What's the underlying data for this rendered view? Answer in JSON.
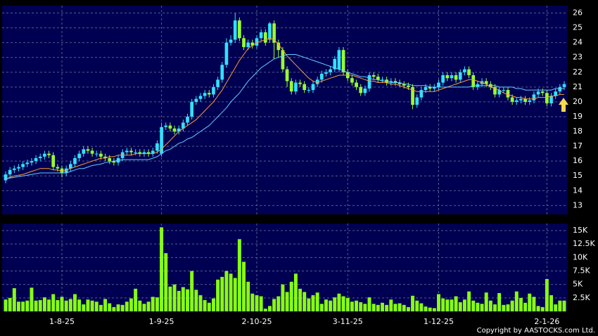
{
  "chart_data": {
    "type": "candlestick",
    "categories": [
      null,
      null,
      null,
      null,
      null,
      null,
      null,
      null,
      null,
      null,
      null,
      null,
      null,
      "1-8-25",
      null,
      null,
      null,
      null,
      null,
      null,
      null,
      null,
      null,
      null,
      null,
      null,
      null,
      null,
      null,
      null,
      null,
      null,
      null,
      null,
      null,
      null,
      "1-9-25",
      null,
      null,
      null,
      null,
      null,
      null,
      null,
      null,
      null,
      null,
      null,
      null,
      null,
      null,
      null,
      null,
      null,
      null,
      null,
      null,
      null,
      "2-10-25",
      null,
      null,
      null,
      null,
      null,
      null,
      null,
      null,
      null,
      null,
      null,
      null,
      null,
      null,
      null,
      null,
      null,
      null,
      null,
      null,
      "3-11-25",
      null,
      null,
      null,
      null,
      null,
      null,
      null,
      null,
      null,
      null,
      null,
      null,
      null,
      null,
      null,
      null,
      null,
      null,
      null,
      null,
      "1-12-25",
      null,
      null,
      null,
      null,
      null,
      null,
      null,
      null,
      null,
      null,
      null,
      null,
      null,
      null,
      null,
      null,
      null,
      null,
      null,
      null,
      null,
      null,
      null,
      null,
      "2-1-26",
      null,
      null,
      null,
      null
    ],
    "open": [
      14.7,
      15.1,
      15.4,
      15.5,
      15.6,
      15.8,
      15.9,
      16.0,
      16.2,
      16.3,
      16.5,
      16.4,
      15.6,
      15.5,
      15.2,
      15.5,
      15.8,
      16.2,
      16.5,
      16.8,
      16.7,
      16.5,
      16.5,
      16.3,
      16.2,
      16.0,
      15.9,
      16.2,
      16.6,
      16.7,
      16.6,
      16.6,
      16.5,
      16.6,
      16.5,
      16.7,
      16.5,
      18.3,
      18.4,
      18.2,
      18.0,
      18.2,
      18.6,
      19.0,
      20.0,
      20.2,
      20.4,
      20.6,
      20.5,
      21.0,
      21.5,
      22.5,
      24.0,
      24.2,
      25.5,
      24.3,
      23.7,
      24.0,
      23.8,
      24.3,
      24.7,
      24.2,
      25.3,
      24.0,
      23.5,
      22.2,
      21.4,
      20.7,
      21.3,
      21.2,
      20.8,
      20.8,
      21.2,
      21.5,
      21.9,
      22.0,
      22.2,
      22.2,
      23.5,
      22.0,
      21.6,
      21.3,
      21.0,
      20.6,
      20.9,
      21.8,
      21.7,
      21.5,
      21.5,
      21.3,
      21.4,
      21.3,
      21.2,
      21.1,
      21.0,
      19.8,
      20.3,
      20.8,
      21.0,
      20.9,
      21.0,
      21.3,
      21.8,
      21.6,
      21.8,
      21.5,
      22.0,
      22.2,
      21.8,
      21.0,
      21.2,
      21.4,
      21.2,
      21.0,
      20.5,
      20.8,
      20.8,
      20.3,
      20.0,
      20.1,
      20.2,
      20.0,
      20.1,
      20.5,
      20.7,
      20.6,
      19.9,
      20.4,
      20.7,
      21.0
    ],
    "high": [
      15.3,
      15.6,
      15.7,
      15.8,
      16.0,
      16.1,
      16.2,
      16.4,
      16.5,
      16.7,
      16.7,
      16.6,
      15.8,
      15.7,
      15.7,
      16.0,
      16.4,
      16.7,
      17.0,
      17.0,
      16.9,
      16.7,
      16.7,
      16.5,
      16.4,
      16.2,
      16.4,
      16.8,
      16.9,
      16.9,
      16.8,
      16.8,
      16.8,
      16.8,
      16.9,
      17.4,
      18.6,
      18.6,
      18.6,
      18.4,
      18.4,
      18.8,
      19.2,
      20.2,
      20.4,
      20.6,
      20.8,
      20.8,
      21.2,
      21.7,
      22.7,
      24.3,
      24.5,
      26.0,
      25.7,
      24.5,
      24.2,
      24.2,
      24.5,
      24.9,
      24.9,
      25.4,
      25.5,
      24.2,
      23.7,
      22.4,
      21.6,
      21.5,
      21.5,
      21.4,
      21.0,
      21.4,
      21.7,
      22.1,
      22.2,
      22.4,
      23.1,
      23.7,
      23.7,
      22.2,
      21.8,
      21.5,
      21.2,
      21.1,
      22.0,
      22.0,
      21.9,
      21.7,
      21.7,
      21.6,
      21.6,
      21.5,
      21.4,
      21.3,
      21.2,
      20.5,
      21.0,
      21.2,
      21.2,
      21.2,
      21.5,
      22.0,
      22.0,
      22.0,
      22.0,
      22.2,
      22.4,
      22.4,
      22.0,
      21.4,
      21.6,
      21.6,
      21.4,
      21.2,
      21.0,
      21.0,
      21.0,
      20.5,
      20.3,
      20.4,
      20.4,
      20.3,
      20.7,
      20.9,
      20.9,
      20.8,
      20.6,
      20.9,
      21.2,
      21.4
    ],
    "low": [
      14.5,
      14.9,
      15.2,
      15.3,
      15.4,
      15.6,
      15.7,
      15.8,
      16.0,
      16.1,
      16.2,
      15.4,
      15.3,
      14.9,
      15.0,
      15.3,
      15.6,
      16.0,
      16.3,
      16.5,
      16.3,
      16.3,
      16.1,
      16.0,
      15.8,
      15.7,
      15.7,
      16.0,
      16.4,
      16.4,
      16.4,
      16.3,
      16.3,
      16.3,
      16.3,
      16.5,
      16.3,
      18.1,
      18.0,
      17.8,
      17.8,
      18.0,
      18.4,
      18.8,
      19.8,
      20.0,
      20.2,
      20.3,
      20.3,
      20.8,
      21.3,
      22.3,
      23.8,
      24.0,
      24.1,
      23.5,
      23.5,
      23.6,
      23.6,
      24.1,
      23.8,
      24.0,
      22.9,
      23.0,
      22.0,
      21.0,
      20.5,
      20.5,
      21.0,
      20.6,
      20.6,
      20.6,
      21.0,
      21.3,
      21.7,
      21.8,
      22.0,
      22.0,
      21.8,
      21.4,
      21.1,
      20.8,
      20.4,
      20.4,
      20.7,
      21.5,
      21.3,
      21.3,
      21.1,
      21.1,
      21.1,
      21.0,
      20.9,
      20.8,
      19.5,
      19.6,
      20.1,
      20.6,
      20.7,
      20.7,
      20.8,
      21.1,
      21.4,
      21.4,
      21.3,
      21.3,
      21.8,
      21.6,
      20.8,
      20.8,
      21.0,
      21.0,
      20.8,
      20.3,
      20.3,
      20.6,
      20.1,
      19.8,
      19.8,
      19.9,
      19.8,
      19.8,
      19.9,
      20.3,
      20.4,
      19.7,
      19.7,
      20.2,
      20.5,
      20.8
    ],
    "close": [
      15.1,
      15.4,
      15.5,
      15.6,
      15.8,
      15.9,
      16.0,
      16.2,
      16.3,
      16.5,
      16.4,
      15.6,
      15.5,
      15.2,
      15.5,
      15.8,
      16.2,
      16.5,
      16.8,
      16.7,
      16.5,
      16.5,
      16.3,
      16.2,
      16.0,
      15.9,
      16.2,
      16.6,
      16.7,
      16.6,
      16.6,
      16.5,
      16.6,
      16.5,
      16.7,
      17.2,
      18.3,
      18.4,
      18.2,
      18.0,
      18.2,
      18.6,
      19.0,
      20.0,
      20.2,
      20.4,
      20.6,
      20.5,
      21.0,
      21.5,
      22.5,
      24.0,
      24.2,
      25.5,
      24.3,
      23.7,
      24.0,
      23.8,
      24.3,
      24.7,
      24.0,
      25.3,
      24.0,
      23.5,
      22.2,
      21.4,
      20.7,
      21.3,
      21.2,
      20.8,
      20.8,
      21.2,
      21.5,
      21.9,
      22.0,
      22.2,
      22.9,
      23.5,
      22.0,
      21.6,
      21.3,
      21.0,
      20.6,
      20.9,
      21.8,
      21.7,
      21.5,
      21.5,
      21.3,
      21.4,
      21.3,
      21.2,
      21.1,
      21.0,
      19.8,
      20.3,
      20.8,
      21.0,
      20.9,
      21.0,
      21.3,
      21.8,
      21.6,
      21.8,
      21.5,
      22.0,
      22.2,
      21.8,
      21.0,
      21.2,
      21.4,
      21.2,
      21.0,
      20.5,
      20.8,
      20.8,
      20.3,
      20.0,
      20.1,
      20.2,
      20.0,
      20.1,
      20.5,
      20.7,
      20.6,
      19.9,
      20.4,
      20.7,
      21.0,
      21.2
    ],
    "up_color": "#33e0ff",
    "down_color": "#99ff33",
    "lines": [
      {
        "color": "#ff9933",
        "values": [
          14.8,
          14.9,
          15.0,
          15.05,
          15.1,
          15.2,
          15.3,
          15.4,
          15.5,
          15.5,
          15.5,
          15.4,
          15.4,
          15.3,
          15.4,
          15.5,
          15.6,
          15.7,
          15.8,
          15.9,
          16.0,
          16.1,
          16.2,
          16.2,
          16.3,
          16.3,
          16.4,
          16.4,
          16.4,
          16.4,
          16.5,
          16.5,
          16.5,
          16.5,
          16.5,
          16.6,
          16.8,
          17.1,
          17.4,
          17.7,
          18.0,
          18.2,
          18.4,
          18.6,
          18.8,
          19.1,
          19.4,
          19.7,
          20.0,
          20.4,
          20.8,
          21.3,
          21.8,
          22.3,
          22.8,
          23.2,
          23.6,
          23.8,
          24.0,
          24.1,
          24.2,
          24.3,
          24.2,
          23.9,
          23.5,
          23.1,
          22.8,
          22.5,
          22.2,
          21.9,
          21.6,
          21.4,
          21.3,
          21.4,
          21.5,
          21.6,
          21.7,
          21.8,
          21.8,
          21.8,
          21.8,
          21.7,
          21.6,
          21.5,
          21.4,
          21.4,
          21.3,
          21.3,
          21.3,
          21.2,
          21.2,
          21.1,
          21.0,
          20.9,
          20.8,
          20.7,
          20.7,
          20.7,
          20.7,
          20.7,
          20.8,
          20.9,
          21.0,
          21.1,
          21.2,
          21.3,
          21.4,
          21.5,
          21.5,
          21.4,
          21.3,
          21.2,
          21.0,
          20.9,
          20.8,
          20.6,
          20.5,
          20.4,
          20.3,
          20.3,
          20.2,
          20.2,
          20.2,
          20.3,
          20.3,
          20.3,
          20.4,
          20.4,
          20.5,
          20.5
        ]
      },
      {
        "color": "#66ccff",
        "values": [
          14.8,
          14.85,
          14.9,
          14.95,
          15.0,
          15.05,
          15.1,
          15.15,
          15.2,
          15.2,
          15.2,
          15.2,
          15.2,
          15.2,
          15.2,
          15.3,
          15.4,
          15.5,
          15.5,
          15.6,
          15.7,
          15.75,
          15.8,
          15.9,
          15.95,
          16.0,
          16.05,
          16.1,
          16.1,
          16.1,
          16.1,
          16.1,
          16.1,
          16.1,
          16.2,
          16.3,
          16.5,
          16.7,
          16.8,
          17.0,
          17.2,
          17.3,
          17.5,
          17.6,
          17.8,
          18.0,
          18.2,
          18.4,
          18.7,
          19.0,
          19.3,
          19.6,
          20.0,
          20.3,
          20.6,
          21.0,
          21.4,
          21.7,
          22.0,
          22.3,
          22.5,
          22.7,
          22.9,
          23.0,
          23.1,
          23.2,
          23.2,
          23.2,
          23.1,
          23.0,
          22.9,
          22.8,
          22.7,
          22.6,
          22.5,
          22.4,
          22.3,
          22.2,
          22.1,
          22.0,
          21.9,
          21.8,
          21.7,
          21.7,
          21.6,
          21.5,
          21.5,
          21.4,
          21.4,
          21.3,
          21.3,
          21.3,
          21.2,
          21.2,
          21.1,
          21.1,
          21.1,
          21.1,
          21.0,
          21.0,
          21.0,
          21.0,
          21.0,
          21.0,
          21.0,
          21.0,
          21.0,
          21.0,
          21.1,
          21.1,
          21.1,
          21.1,
          21.1,
          21.1,
          21.0,
          21.0,
          21.0,
          21.0,
          20.9,
          20.9,
          20.8,
          20.8,
          20.8,
          20.8,
          20.8,
          20.8,
          20.8,
          20.9,
          20.9,
          20.9
        ]
      }
    ],
    "ylim": [
      12.4,
      26.5
    ],
    "yticks": [
      13,
      14,
      15,
      16,
      17,
      18,
      19,
      20,
      21,
      22,
      23,
      24,
      25,
      26
    ],
    "grid": true,
    "volume": {
      "color": "#88ff11",
      "values": [
        2200,
        2500,
        4300,
        1800,
        1800,
        2000,
        4400,
        2000,
        2100,
        2600,
        2200,
        3200,
        2100,
        2700,
        2000,
        2300,
        3200,
        2200,
        1300,
        2200,
        2000,
        1800,
        1200,
        2300,
        1500,
        800,
        1300,
        1200,
        1800,
        2400,
        4200,
        2000,
        1400,
        1800,
        2700,
        2600,
        15600,
        10800,
        4600,
        5000,
        3800,
        4500,
        4100,
        7500,
        4000,
        3000,
        2100,
        1600,
        2400,
        5900,
        6400,
        7500,
        7000,
        6200,
        13400,
        9200,
        5500,
        3300,
        3000,
        2800,
        500,
        1000,
        2300,
        2800,
        5000,
        3600,
        5500,
        7000,
        4200,
        3600,
        2400,
        3000,
        3500,
        1400,
        2200,
        2000,
        2600,
        3300,
        2800,
        2500,
        1800,
        2000,
        1700,
        1400,
        2600,
        1400,
        1200,
        1600,
        1200,
        2200,
        1400,
        1500,
        1200,
        800,
        2900,
        2000,
        1500,
        900,
        700,
        600,
        3200,
        2400,
        2200,
        2200,
        2800,
        1700,
        2200,
        3700,
        2000,
        1600,
        1400,
        3500,
        2000,
        1300,
        3400,
        1200,
        1300,
        2000,
        3700,
        2500,
        1600,
        3300,
        2700,
        1000,
        800,
        6000,
        3000,
        1300,
        2000,
        2000
      ],
      "ylim": [
        0,
        16300
      ],
      "yticks": [
        {
          "value": 2500,
          "label": "2.5K"
        },
        {
          "value": 5000,
          "label": "5K"
        },
        {
          "value": 7500,
          "label": "7.5K"
        },
        {
          "value": 10000,
          "label": "10K"
        },
        {
          "value": 12500,
          "label": "12.5K"
        },
        {
          "value": 15000,
          "label": "15K"
        }
      ]
    },
    "copyright": "Copyright by AASTOCKS.com Ltd."
  }
}
